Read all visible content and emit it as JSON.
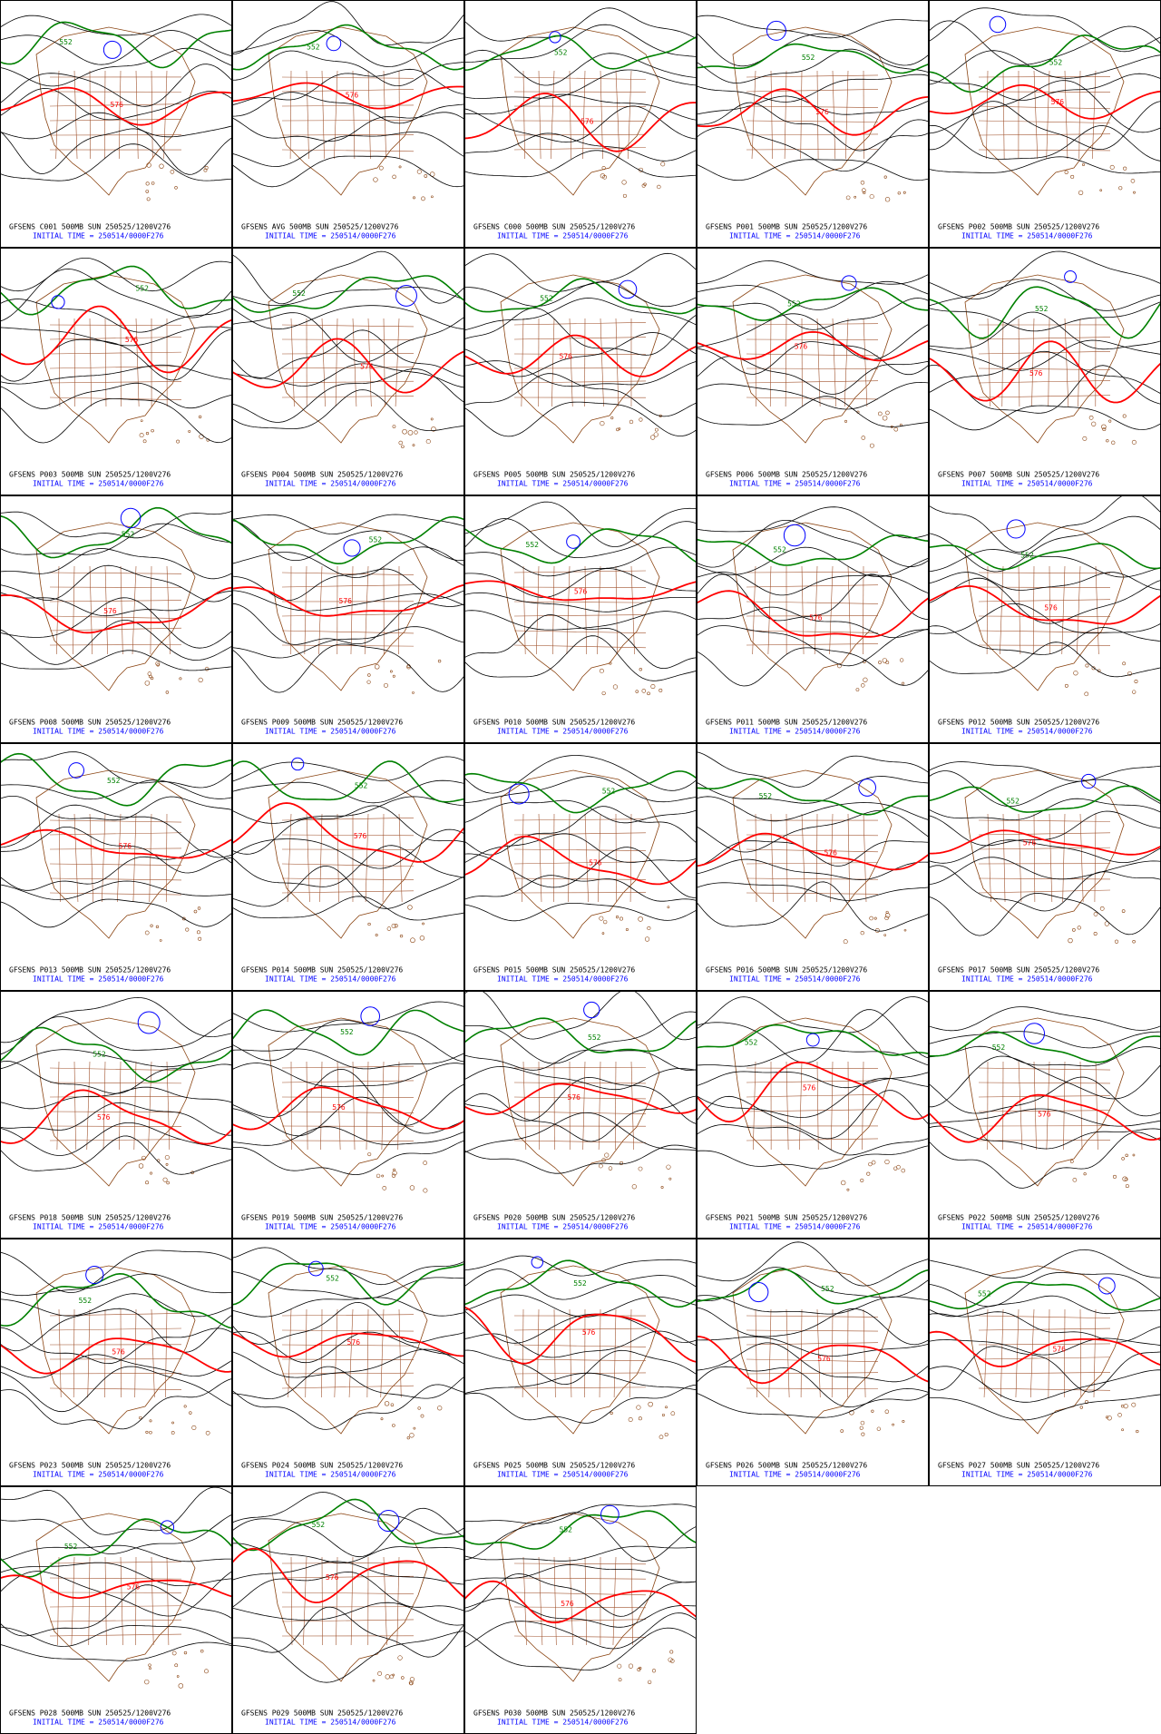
{
  "panels": [
    {
      "title": "GFSENS C001 500MB SUN 250525/1200V276",
      "init": "INITIAL TIME = 250514/0000F276",
      "contour_labels": [
        "576",
        "552"
      ]
    },
    {
      "title": "GFSENS AVG 500MB SUN 250525/1200V276",
      "init": "INITIAL TIME = 250514/0000F276",
      "contour_labels": [
        "576",
        "552"
      ]
    },
    {
      "title": "GFSENS C000 500MB SUN 250525/1200V276",
      "init": "INITIAL TIME = 250514/0000F276",
      "contour_labels": [
        "576",
        "552"
      ]
    },
    {
      "title": "GFSENS P001 500MB SUN 250525/1200V276",
      "init": "INITIAL TIME = 250514/0000F276",
      "contour_labels": [
        "576",
        "552"
      ]
    },
    {
      "title": "GFSENS P002 500MB SUN 250525/1200V276",
      "init": "INITIAL TIME = 250514/0000F276",
      "contour_labels": [
        "576",
        "552"
      ]
    },
    {
      "title": "GFSENS P003 500MB SUN 250525/1200V276",
      "init": "INITIAL TIME = 250514/0000F276",
      "contour_labels": [
        "576",
        "552"
      ]
    },
    {
      "title": "GFSENS P004 500MB SUN 250525/1200V276",
      "init": "INITIAL TIME = 250514/0000F276",
      "contour_labels": [
        "576",
        "552"
      ]
    },
    {
      "title": "GFSENS P005 500MB SUN 250525/1200V276",
      "init": "INITIAL TIME = 250514/0000F276",
      "contour_labels": [
        "576",
        "552"
      ]
    },
    {
      "title": "GFSENS P006 500MB SUN 250525/1200V276",
      "init": "INITIAL TIME = 250514/0000F276",
      "contour_labels": [
        "576",
        "552"
      ]
    },
    {
      "title": "GFSENS P007 500MB SUN 250525/1200V276",
      "init": "INITIAL TIME = 250514/0000F276",
      "contour_labels": [
        "576",
        "552"
      ]
    },
    {
      "title": "GFSENS P008 500MB SUN 250525/1200V276",
      "init": "INITIAL TIME = 250514/0000F276",
      "contour_labels": [
        "576",
        "552"
      ]
    },
    {
      "title": "GFSENS P009 500MB SUN 250525/1200V276",
      "init": "INITIAL TIME = 250514/0000F276",
      "contour_labels": [
        "576",
        "552"
      ]
    },
    {
      "title": "GFSENS P010 500MB SUN 250525/1200V276",
      "init": "INITIAL TIME = 250514/0000F276",
      "contour_labels": [
        "576",
        "552"
      ]
    },
    {
      "title": "GFSENS P011 500MB SUN 250525/1200V276",
      "init": "INITIAL TIME = 250514/0000F276",
      "contour_labels": [
        "576",
        "552"
      ]
    },
    {
      "title": "GFSENS P012 500MB SUN 250525/1200V276",
      "init": "INITIAL TIME = 250514/0000F276",
      "contour_labels": [
        "576",
        "552"
      ]
    },
    {
      "title": "GFSENS P013 500MB SUN 250525/1200V276",
      "init": "INITIAL TIME = 250514/0000F276",
      "contour_labels": [
        "576",
        "552"
      ]
    },
    {
      "title": "GFSENS P014 500MB SUN 250525/1200V276",
      "init": "INITIAL TIME = 250514/0000F276",
      "contour_labels": [
        "576",
        "552"
      ]
    },
    {
      "title": "GFSENS P015 500MB SUN 250525/1200V276",
      "init": "INITIAL TIME = 250514/0000F276",
      "contour_labels": [
        "576",
        "552"
      ]
    },
    {
      "title": "GFSENS P016 500MB SUN 250525/1200V276",
      "init": "INITIAL TIME = 250514/0000F276",
      "contour_labels": [
        "576",
        "552"
      ]
    },
    {
      "title": "GFSENS P017 500MB SUN 250525/1200V276",
      "init": "INITIAL TIME = 250514/0000F276",
      "contour_labels": [
        "576",
        "552"
      ]
    },
    {
      "title": "GFSENS P018 500MB SUN 250525/1200V276",
      "init": "INITIAL TIME = 250514/0000F276",
      "contour_labels": [
        "576",
        "552"
      ]
    },
    {
      "title": "GFSENS P019 500MB SUN 250525/1200V276",
      "init": "INITIAL TIME = 250514/0000F276",
      "contour_labels": [
        "576",
        "552"
      ]
    },
    {
      "title": "GFSENS P020 500MB SUN 250525/1200V276",
      "init": "INITIAL TIME = 250514/0000F276",
      "contour_labels": [
        "576",
        "552"
      ]
    },
    {
      "title": "GFSENS P021 500MB SUN 250525/1200V276",
      "init": "INITIAL TIME = 250514/0000F276",
      "contour_labels": [
        "576",
        "552"
      ]
    },
    {
      "title": "GFSENS P022 500MB SUN 250525/1200V276",
      "init": "INITIAL TIME = 250514/0000F276",
      "contour_labels": [
        "576",
        "552"
      ]
    },
    {
      "title": "GFSENS P023 500MB SUN 250525/1200V276",
      "init": "INITIAL TIME = 250514/0000F276",
      "contour_labels": [
        "576",
        "552"
      ]
    },
    {
      "title": "GFSENS P024 500MB SUN 250525/1200V276",
      "init": "INITIAL TIME = 250514/0000F276",
      "contour_labels": [
        "576",
        "552"
      ]
    },
    {
      "title": "GFSENS P025 500MB SUN 250525/1200V276",
      "init": "INITIAL TIME = 250514/0000F276",
      "contour_labels": [
        "576",
        "552"
      ]
    },
    {
      "title": "GFSENS P026 500MB SUN 250525/1200V276",
      "init": "INITIAL TIME = 250514/0000F276",
      "contour_labels": [
        "576",
        "552"
      ]
    },
    {
      "title": "GFSENS P027 500MB SUN 250525/1200V276",
      "init": "INITIAL TIME = 250514/0000F276",
      "contour_labels": [
        "576",
        "552"
      ]
    },
    {
      "title": "GFSENS P028 500MB SUN 250525/1200V276",
      "init": "INITIAL TIME = 250514/0000F276",
      "contour_labels": [
        "576",
        "552"
      ]
    },
    {
      "title": "GFSENS P029 500MB SUN 250525/1200V276",
      "init": "INITIAL TIME = 250514/0000F276",
      "contour_labels": [
        "576",
        "552"
      ]
    },
    {
      "title": "GFSENS P030 500MB SUN 250525/1200V276",
      "init": "INITIAL TIME = 250514/0000F276",
      "contour_labels": [
        "576",
        "552"
      ]
    }
  ]
}
